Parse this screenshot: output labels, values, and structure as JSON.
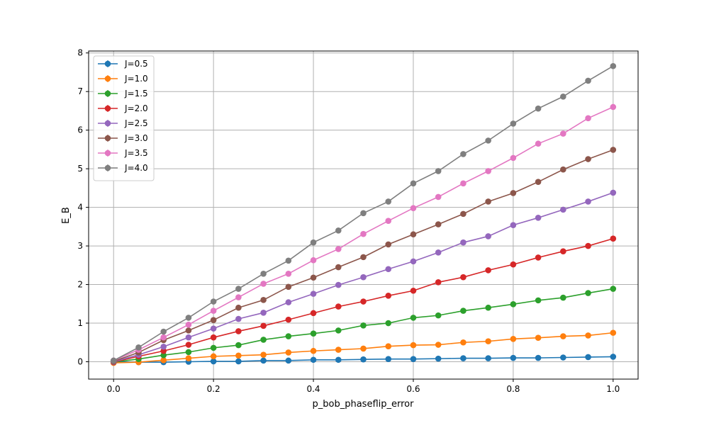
{
  "chart_data": {
    "type": "line",
    "title": "",
    "xlabel": "p_bob_phaseflip_error",
    "ylabel": "E_B",
    "xlim": [
      -0.05,
      1.05
    ],
    "ylim": [
      -0.45,
      8.05
    ],
    "xticks": [
      0.0,
      0.2,
      0.4,
      0.6,
      0.8,
      1.0
    ],
    "xtick_labels": [
      "0.0",
      "0.2",
      "0.4",
      "0.6",
      "0.8",
      "1.0"
    ],
    "yticks": [
      0,
      1,
      2,
      3,
      4,
      5,
      6,
      7,
      8
    ],
    "ytick_labels": [
      "0",
      "1",
      "2",
      "3",
      "4",
      "5",
      "6",
      "7",
      "8"
    ],
    "grid": true,
    "legend_position": "top-left",
    "markers": "circle with error bars",
    "x": [
      0.0,
      0.05,
      0.1,
      0.15,
      0.2,
      0.25,
      0.3,
      0.35,
      0.4,
      0.45,
      0.5,
      0.55,
      0.6,
      0.65,
      0.7,
      0.75,
      0.8,
      0.85,
      0.9,
      0.95,
      1.0
    ],
    "series": [
      {
        "name": "J=0.5",
        "color": "#1f77b4",
        "values": [
          0.0,
          -0.01,
          -0.01,
          0.0,
          0.01,
          0.01,
          0.03,
          0.03,
          0.05,
          0.05,
          0.06,
          0.07,
          0.07,
          0.08,
          0.09,
          0.09,
          0.1,
          0.1,
          0.11,
          0.12,
          0.13
        ]
      },
      {
        "name": "J=1.0",
        "color": "#ff7f0e",
        "values": [
          -0.03,
          -0.01,
          0.04,
          0.09,
          0.14,
          0.16,
          0.18,
          0.24,
          0.28,
          0.31,
          0.34,
          0.4,
          0.43,
          0.44,
          0.5,
          0.53,
          0.59,
          0.62,
          0.66,
          0.68,
          0.75
        ]
      },
      {
        "name": "J=1.5",
        "color": "#2ca02c",
        "values": [
          -0.01,
          0.07,
          0.17,
          0.25,
          0.36,
          0.43,
          0.57,
          0.66,
          0.73,
          0.81,
          0.94,
          1.0,
          1.14,
          1.2,
          1.32,
          1.4,
          1.49,
          1.59,
          1.66,
          1.78,
          1.89
        ]
      },
      {
        "name": "J=2.0",
        "color": "#d62728",
        "values": [
          -0.01,
          0.14,
          0.28,
          0.44,
          0.63,
          0.79,
          0.93,
          1.09,
          1.26,
          1.43,
          1.56,
          1.71,
          1.84,
          2.06,
          2.19,
          2.37,
          2.52,
          2.7,
          2.86,
          3.0,
          3.19
        ]
      },
      {
        "name": "J=2.5",
        "color": "#9467bd",
        "values": [
          0.0,
          0.18,
          0.39,
          0.63,
          0.86,
          1.11,
          1.27,
          1.54,
          1.76,
          1.99,
          2.19,
          2.4,
          2.6,
          2.83,
          3.09,
          3.25,
          3.54,
          3.73,
          3.94,
          4.15,
          4.38
        ]
      },
      {
        "name": "J=3.0",
        "color": "#8c564b",
        "values": [
          0.01,
          0.24,
          0.56,
          0.81,
          1.08,
          1.4,
          1.6,
          1.94,
          2.18,
          2.45,
          2.71,
          3.04,
          3.3,
          3.56,
          3.83,
          4.15,
          4.37,
          4.66,
          4.98,
          5.25,
          5.49
        ]
      },
      {
        "name": "J=3.5",
        "color": "#e377c2",
        "values": [
          0.03,
          0.31,
          0.63,
          0.96,
          1.32,
          1.67,
          2.02,
          2.28,
          2.63,
          2.92,
          3.31,
          3.65,
          3.98,
          4.27,
          4.62,
          4.94,
          5.28,
          5.65,
          5.91,
          6.31,
          6.6
        ]
      },
      {
        "name": "J=4.0",
        "color": "#7f7f7f",
        "values": [
          0.03,
          0.37,
          0.78,
          1.14,
          1.56,
          1.89,
          2.28,
          2.62,
          3.09,
          3.4,
          3.85,
          4.15,
          4.62,
          4.94,
          5.38,
          5.73,
          6.17,
          6.56,
          6.87,
          7.28,
          7.66
        ]
      }
    ]
  }
}
